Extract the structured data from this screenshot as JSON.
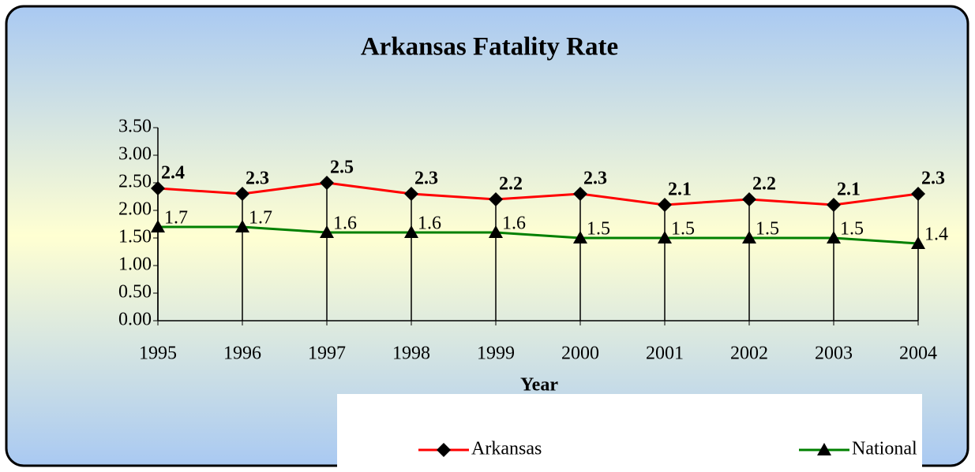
{
  "chart_data": {
    "type": "line",
    "title": "Arkansas Fatality Rate",
    "x_label": "Year",
    "categories": [
      "1995",
      "1996",
      "1997",
      "1998",
      "1999",
      "2000",
      "2001",
      "2002",
      "2003",
      "2004"
    ],
    "series": [
      {
        "name": "Arkansas",
        "color": "#ff0000",
        "marker": "diamond",
        "marker_color": "#000000",
        "values": [
          2.4,
          2.3,
          2.5,
          2.3,
          2.2,
          2.3,
          2.1,
          2.2,
          2.1,
          2.3
        ]
      },
      {
        "name": "National",
        "color": "#008000",
        "marker": "triangle",
        "marker_color": "#000000",
        "values": [
          1.7,
          1.7,
          1.6,
          1.6,
          1.6,
          1.5,
          1.5,
          1.5,
          1.5,
          1.4
        ]
      }
    ],
    "ylim": [
      0,
      3.5
    ],
    "yticks": [
      {
        "value": 0,
        "label": "0.00"
      },
      {
        "value": 0.5,
        "label": "0.50"
      },
      {
        "value": 1,
        "label": "1.00"
      },
      {
        "value": 1.5,
        "label": "1.50"
      },
      {
        "value": 2,
        "label": "2.00"
      },
      {
        "value": 2.5,
        "label": "2.50"
      },
      {
        "value": 3,
        "label": "3.00"
      },
      {
        "value": 3.5,
        "label": "3.50"
      }
    ],
    "drop_lines": true,
    "legend": "bottom"
  }
}
